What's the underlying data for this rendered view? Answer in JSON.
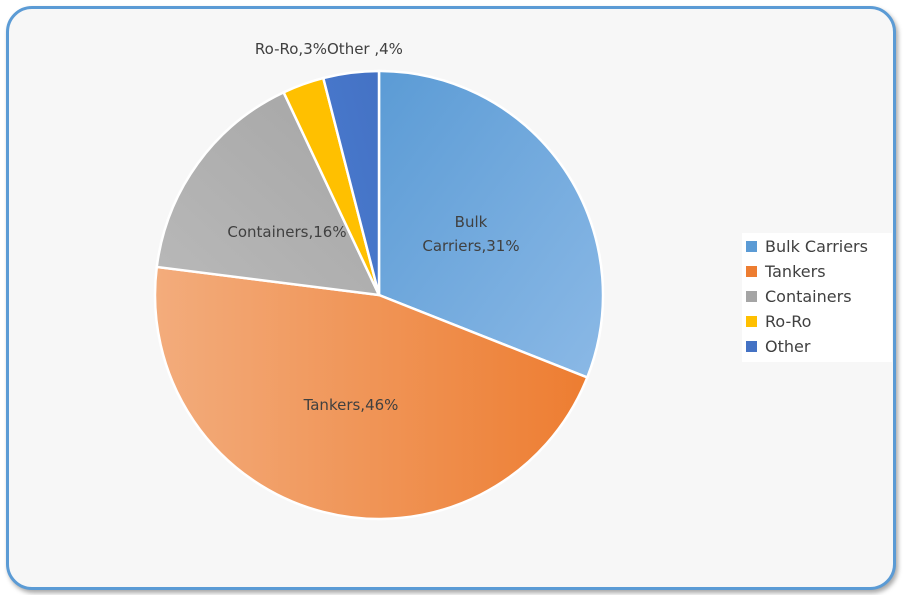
{
  "chart_data": {
    "type": "pie",
    "title": "",
    "slices": [
      {
        "name": "Bulk Carriers",
        "value": 31,
        "color": "#5b9bd5",
        "light": "#8bb9e6",
        "label_lines": [
          "Bulk",
          "Carriers,31%"
        ]
      },
      {
        "name": "Tankers",
        "value": 46,
        "color": "#ed7d31",
        "light": "#f3ac7c",
        "label_lines": [
          "Tankers,46%"
        ]
      },
      {
        "name": "Containers",
        "value": 16,
        "color": "#a5a5a5",
        "light": "#b9b9b9",
        "label_lines": [
          "Containers,16%"
        ]
      },
      {
        "name": "Ro-Ro",
        "value": 3,
        "color": "#ffc000",
        "light": "#ffc000",
        "label_lines": [
          "Ro-Ro,3%"
        ]
      },
      {
        "name": "Other",
        "value": 4,
        "color": "#4472c4",
        "light": "#4a7bd0",
        "label_lines": [
          "Other ,4%"
        ]
      }
    ],
    "legend": {
      "position": "right",
      "entries": [
        "Bulk Carriers",
        "Tankers",
        "Containers",
        "Ro-Ro",
        "Other"
      ]
    }
  }
}
